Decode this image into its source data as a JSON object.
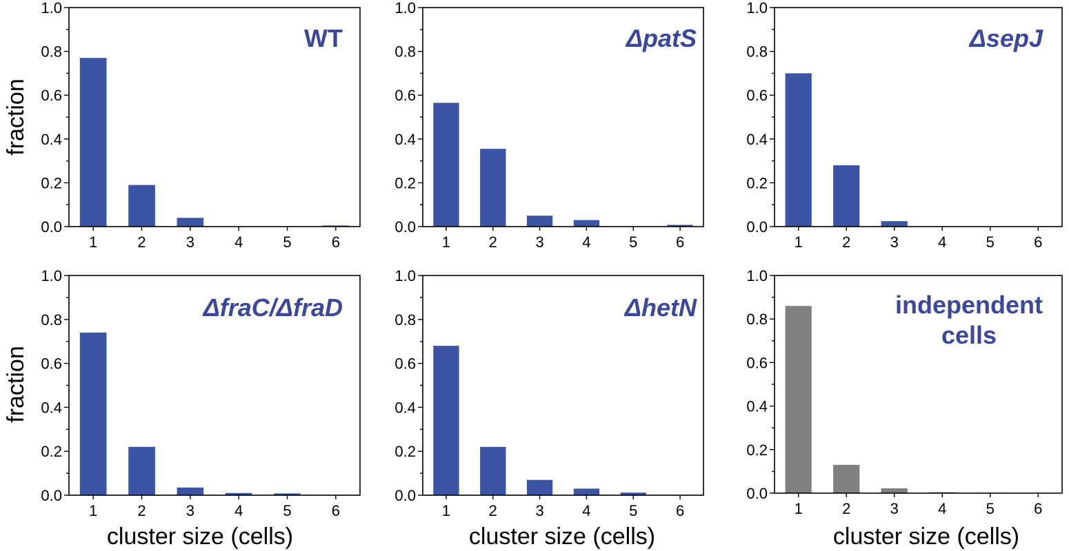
{
  "colors": {
    "blue": "#3b55a4",
    "gray": "#808080",
    "label": "#3b479a"
  },
  "shared_axis": {
    "ylabel": "fraction",
    "xlabel": "cluster size (cells)"
  },
  "chart_data": [
    {
      "type": "bar",
      "label": "WT",
      "categories": [
        "1",
        "2",
        "3",
        "4",
        "5",
        "6"
      ],
      "values": [
        0.77,
        0.19,
        0.04,
        0.0,
        0.0,
        0.005
      ],
      "ylim": [
        0,
        1.0
      ],
      "grid": false,
      "color": "#3b55a4"
    },
    {
      "type": "bar",
      "label": "ΔpatS",
      "categories": [
        "1",
        "2",
        "3",
        "4",
        "5",
        "6"
      ],
      "values": [
        0.565,
        0.355,
        0.05,
        0.03,
        0.0,
        0.008
      ],
      "ylim": [
        0,
        1.0
      ],
      "grid": false,
      "color": "#3b55a4"
    },
    {
      "type": "bar",
      "label": "ΔsepJ",
      "categories": [
        "1",
        "2",
        "3",
        "4",
        "5",
        "6"
      ],
      "values": [
        0.7,
        0.28,
        0.025,
        0.0,
        0.0,
        0.0
      ],
      "ylim": [
        0,
        1.0
      ],
      "grid": false,
      "color": "#3b55a4"
    },
    {
      "type": "bar",
      "label": "ΔfraC/ΔfraD",
      "categories": [
        "1",
        "2",
        "3",
        "4",
        "5",
        "6"
      ],
      "values": [
        0.74,
        0.22,
        0.035,
        0.01,
        0.008,
        0.0
      ],
      "ylim": [
        0,
        1.0
      ],
      "grid": false,
      "color": "#3b55a4"
    },
    {
      "type": "bar",
      "label": "ΔhetN",
      "categories": [
        "1",
        "2",
        "3",
        "4",
        "5",
        "6"
      ],
      "values": [
        0.68,
        0.22,
        0.07,
        0.03,
        0.012,
        0.0
      ],
      "ylim": [
        0,
        1.0
      ],
      "grid": false,
      "color": "#3b55a4"
    },
    {
      "type": "bar",
      "label": "independent cells",
      "categories": [
        "1",
        "2",
        "3",
        "4",
        "5",
        "6"
      ],
      "values": [
        0.86,
        0.13,
        0.022,
        0.004,
        0.002,
        0.001
      ],
      "ylim": [
        0,
        1.0
      ],
      "grid": false,
      "color": "#808080"
    }
  ]
}
